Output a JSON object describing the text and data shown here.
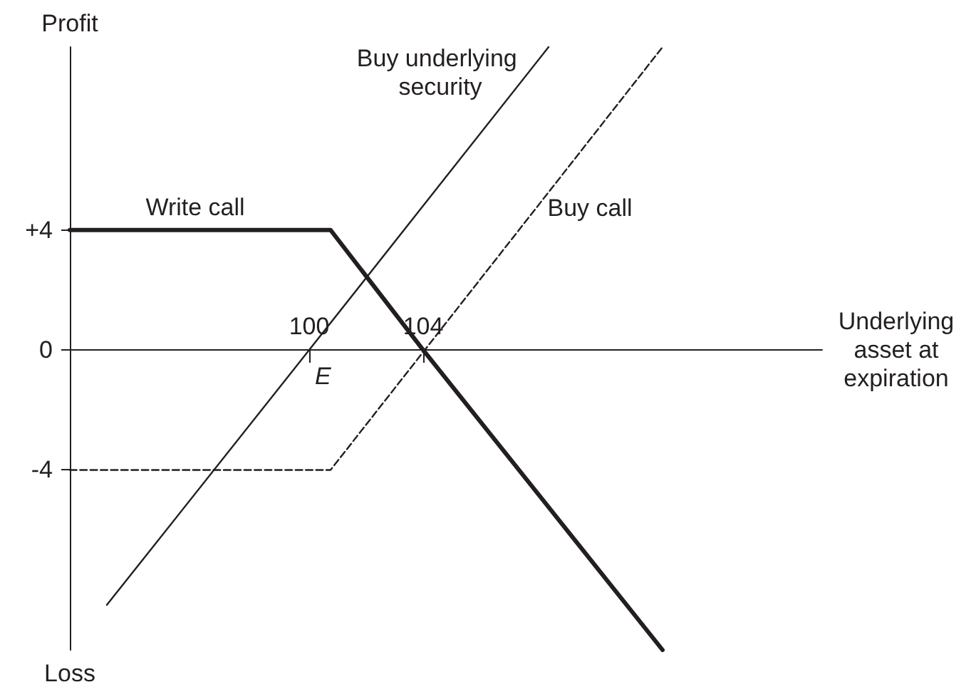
{
  "chart_data": {
    "type": "line",
    "ylabel": "Profit",
    "xlabel": "Underlying asset at expiration",
    "xlim": [
      91.6,
      118
    ],
    "xticks": [
      100,
      104
    ],
    "ylim": [
      -10,
      10.1
    ],
    "yticks": [
      {
        "value": 4,
        "label": "+4"
      },
      0,
      -4
    ],
    "series": [
      {
        "name": "Write call",
        "color": "#231f20",
        "line_style": "solid",
        "x": [
          91.6,
          100.75,
          104,
          112.4
        ],
        "values": [
          4,
          4,
          0,
          -10
        ]
      },
      {
        "name": "Buy underlying security",
        "color": "#231f20",
        "line_style": "solid",
        "x": [
          92.9,
          100,
          108.4
        ],
        "values": [
          -8.5,
          0,
          10.1
        ]
      },
      {
        "name": "Buy call",
        "color": "#231f20",
        "line_style": "dashed",
        "x": [
          91.6,
          100.75,
          112.4
        ],
        "values": [
          -4,
          -4,
          10.1
        ]
      }
    ],
    "annotations": [
      {
        "text": "E",
        "x": 100,
        "y": 0
      },
      "Loss"
    ],
    "marker": "none",
    "grid": false,
    "legend": false
  }
}
